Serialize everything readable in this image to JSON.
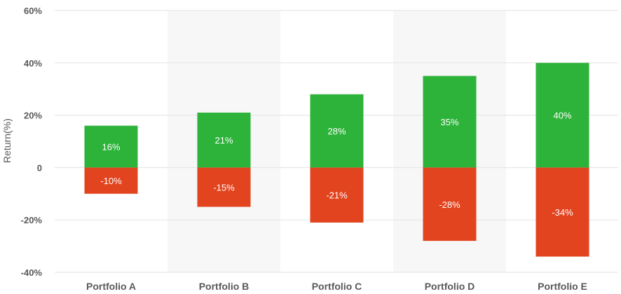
{
  "chart_data": {
    "type": "bar",
    "title": "",
    "xlabel": "",
    "ylabel": "Return(%)",
    "ylim": [
      -40,
      60
    ],
    "yticks": [
      -40,
      -20,
      0,
      20,
      40,
      60
    ],
    "ytick_labels": [
      "-40%",
      "-20%",
      "0",
      "20%",
      "40%",
      "60%"
    ],
    "categories": [
      "Portfolio A",
      "Portfolio B",
      "Portfolio C",
      "Portfolio D",
      "Portfolio E"
    ],
    "series": [
      {
        "values": [
          16,
          21,
          28,
          35,
          40
        ],
        "labels": [
          "16%",
          "21%",
          "28%",
          "35%",
          "40%"
        ],
        "color": "#2db33a"
      },
      {
        "values": [
          -10,
          -15,
          -21,
          -28,
          -34
        ],
        "labels": [
          "-10%",
          "-15%",
          "-21%",
          "-28%",
          "-34%"
        ],
        "color": "#e2441f"
      }
    ],
    "alternate_band_color": "#f7f7f7",
    "grid": true,
    "legend": "none"
  }
}
